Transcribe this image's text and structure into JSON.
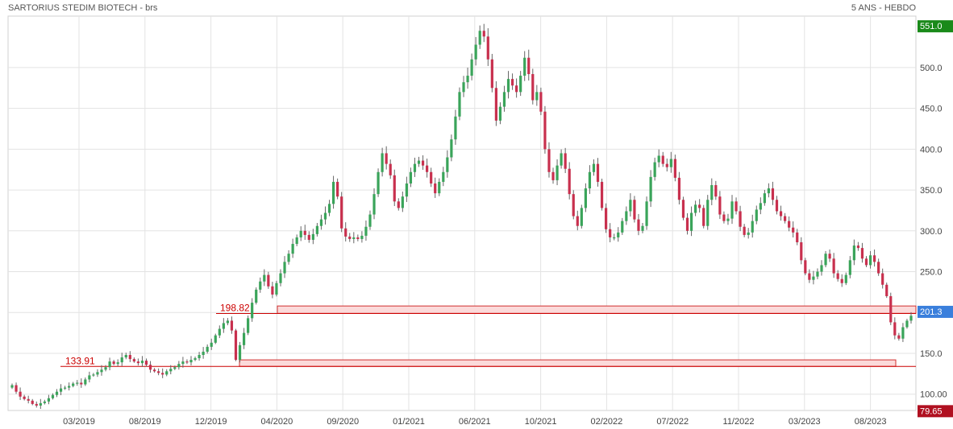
{
  "header": {
    "title": "SARTORIUS STEDIM BIOTECH - brs",
    "period": "5 ANS - HEBDO"
  },
  "chart_data": {
    "type": "candlestick",
    "x_ticks": [
      "03/2019",
      "08/2019",
      "12/2019",
      "04/2020",
      "09/2020",
      "01/2021",
      "06/2021",
      "10/2021",
      "02/2022",
      "07/2022",
      "11/2022",
      "03/2023",
      "08/2023"
    ],
    "y_ticks": [
      "100.00",
      "150.0",
      "200.0",
      "250.0",
      "300.0",
      "350.0",
      "400.0",
      "450.0",
      "500.0"
    ],
    "ylim": [
      80,
      563
    ],
    "grid": true,
    "price_tags": [
      {
        "label": "551.0",
        "value": 551.0,
        "color": "#1a8a1a"
      },
      {
        "label": "201.3",
        "value": 201.3,
        "color": "#3a7fdc"
      },
      {
        "label": "79.65",
        "value": 79.65,
        "color": "#b01020"
      }
    ],
    "levels": [
      {
        "label": "198.82",
        "value": 198.82
      },
      {
        "label": "133.91",
        "value": 133.91
      }
    ],
    "zones": [
      {
        "from": 199,
        "to": 208
      },
      {
        "from": 134,
        "to": 142
      }
    ],
    "closes": [
      111,
      103,
      97,
      94,
      92,
      88,
      86,
      89,
      91,
      95,
      99,
      103,
      107,
      108,
      110,
      113,
      114,
      112,
      118,
      123,
      124,
      127,
      130,
      133,
      140,
      137,
      139,
      145,
      148,
      143,
      140,
      138,
      141,
      136,
      130,
      128,
      126,
      124,
      128,
      131,
      133,
      137,
      140,
      139,
      142,
      144,
      148,
      152,
      158,
      163,
      172,
      180,
      187,
      190,
      178,
      142,
      160,
      175,
      193,
      212,
      228,
      238,
      246,
      232,
      222,
      236,
      248,
      262,
      272,
      284,
      292,
      300,
      295,
      289,
      296,
      306,
      314,
      322,
      333,
      360,
      342,
      303,
      293,
      290,
      292,
      290,
      294,
      305,
      320,
      345,
      372,
      395,
      382,
      368,
      336,
      328,
      342,
      358,
      372,
      382,
      386,
      380,
      372,
      358,
      346,
      360,
      372,
      390,
      412,
      440,
      470,
      482,
      490,
      510,
      528,
      545,
      538,
      510,
      475,
      435,
      452,
      470,
      486,
      478,
      470,
      490,
      512,
      492,
      460,
      470,
      446,
      400,
      372,
      362,
      380,
      395,
      376,
      345,
      318,
      306,
      328,
      352,
      372,
      382,
      360,
      328,
      302,
      292,
      292,
      298,
      312,
      324,
      338,
      314,
      300,
      306,
      336,
      366,
      384,
      392,
      382,
      378,
      388,
      365,
      338,
      316,
      300,
      322,
      332,
      328,
      306,
      338,
      356,
      342,
      320,
      312,
      315,
      336,
      324,
      305,
      295,
      298,
      312,
      326,
      334,
      346,
      352,
      338,
      324,
      318,
      312,
      304,
      298,
      286,
      264,
      248,
      240,
      244,
      250,
      258,
      272,
      266,
      248,
      241,
      236,
      246,
      264,
      282,
      279,
      266,
      258,
      270,
      262,
      248,
      234,
      220,
      188,
      172,
      168,
      182,
      190,
      196
    ]
  }
}
